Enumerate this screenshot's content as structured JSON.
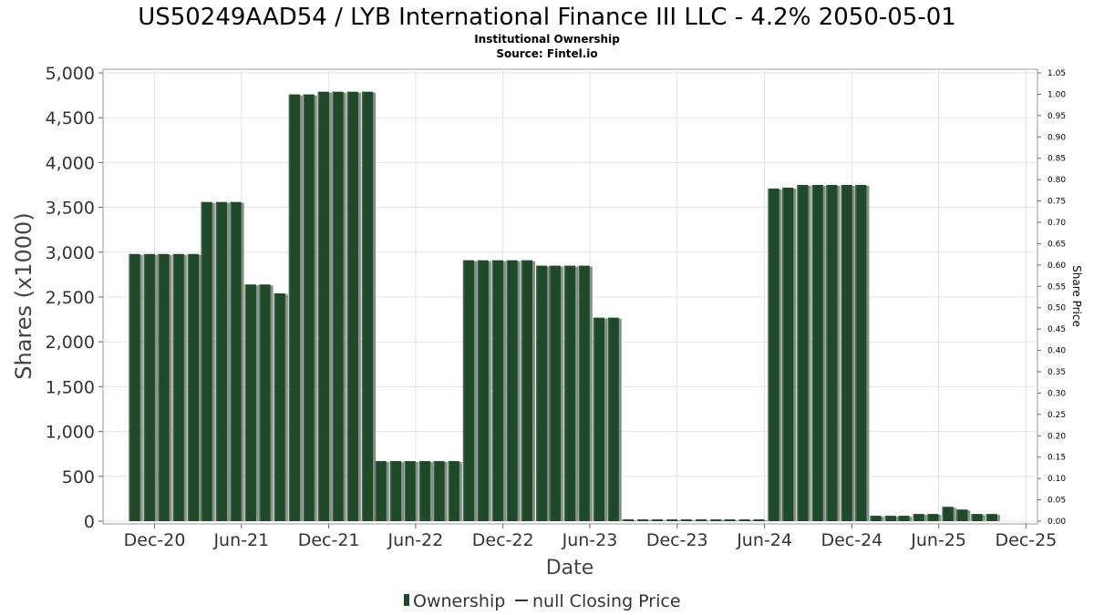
{
  "chart_data": {
    "type": "bar",
    "title": "US50249AAD54 / LYB International Finance III LLC - 4.2% 2050-05-01",
    "subtitle_lines": [
      "Institutional Ownership",
      "Source: Fintel.io"
    ],
    "xlabel": "Date",
    "ylabel": "Shares (x1000)",
    "y2label": "Share Price",
    "ylim": [
      0,
      5000
    ],
    "y2lim": [
      0,
      1.05
    ],
    "xlim": [
      "2020-08-15",
      "2025-12-25"
    ],
    "grid": true,
    "legend_position": "bottom",
    "bar_color": "#1e4a2a",
    "yticks": [
      {
        "value": 0,
        "label": "0"
      },
      {
        "value": 500,
        "label": "500"
      },
      {
        "value": 1000,
        "label": "1,000"
      },
      {
        "value": 1500,
        "label": "1,500"
      },
      {
        "value": 2000,
        "label": "2,000"
      },
      {
        "value": 2500,
        "label": "2,500"
      },
      {
        "value": 3000,
        "label": "3,000"
      },
      {
        "value": 3500,
        "label": "3,500"
      },
      {
        "value": 4000,
        "label": "4,000"
      },
      {
        "value": 4500,
        "label": "4,500"
      },
      {
        "value": 5000,
        "label": "5,000"
      }
    ],
    "y2ticks": [
      {
        "value": 0.0,
        "label": "0.00"
      },
      {
        "value": 0.05,
        "label": "0.05"
      },
      {
        "value": 0.1,
        "label": "0.10"
      },
      {
        "value": 0.15,
        "label": "0.15"
      },
      {
        "value": 0.2,
        "label": "0.20"
      },
      {
        "value": 0.25,
        "label": "0.25"
      },
      {
        "value": 0.3,
        "label": "0.30"
      },
      {
        "value": 0.35,
        "label": "0.35"
      },
      {
        "value": 0.4,
        "label": "0.40"
      },
      {
        "value": 0.45,
        "label": "0.45"
      },
      {
        "value": 0.5,
        "label": "0.50"
      },
      {
        "value": 0.55,
        "label": "0.55"
      },
      {
        "value": 0.6,
        "label": "0.60"
      },
      {
        "value": 0.65,
        "label": "0.65"
      },
      {
        "value": 0.7,
        "label": "0.70"
      },
      {
        "value": 0.75,
        "label": "0.75"
      },
      {
        "value": 0.8,
        "label": "0.80"
      },
      {
        "value": 0.85,
        "label": "0.85"
      },
      {
        "value": 0.9,
        "label": "0.90"
      },
      {
        "value": 0.95,
        "label": "0.95"
      },
      {
        "value": 1.0,
        "label": "1.00"
      },
      {
        "value": 1.05,
        "label": "1.05"
      }
    ],
    "xticks": [
      {
        "date": "2020-12-01",
        "label": "Dec-20"
      },
      {
        "date": "2021-06-01",
        "label": "Jun-21"
      },
      {
        "date": "2021-12-01",
        "label": "Dec-21"
      },
      {
        "date": "2022-06-01",
        "label": "Jun-22"
      },
      {
        "date": "2022-12-01",
        "label": "Dec-22"
      },
      {
        "date": "2023-06-01",
        "label": "Jun-23"
      },
      {
        "date": "2023-12-01",
        "label": "Dec-23"
      },
      {
        "date": "2024-06-01",
        "label": "Jun-24"
      },
      {
        "date": "2024-12-01",
        "label": "Dec-24"
      },
      {
        "date": "2025-06-01",
        "label": "Jun-25"
      },
      {
        "date": "2025-12-01",
        "label": "Dec-25"
      }
    ],
    "series": [
      {
        "name": "Ownership",
        "points": [
          {
            "x": "2020-10-20",
            "y": 2980
          },
          {
            "x": "2020-11-20",
            "y": 2980
          },
          {
            "x": "2020-12-20",
            "y": 2980
          },
          {
            "x": "2021-01-20",
            "y": 2980
          },
          {
            "x": "2021-02-20",
            "y": 2980
          },
          {
            "x": "2021-03-20",
            "y": 3560
          },
          {
            "x": "2021-04-20",
            "y": 3560
          },
          {
            "x": "2021-05-20",
            "y": 3560
          },
          {
            "x": "2021-06-20",
            "y": 2640
          },
          {
            "x": "2021-07-20",
            "y": 2640
          },
          {
            "x": "2021-08-20",
            "y": 2540
          },
          {
            "x": "2021-09-20",
            "y": 4760
          },
          {
            "x": "2021-10-20",
            "y": 4760
          },
          {
            "x": "2021-11-20",
            "y": 4790
          },
          {
            "x": "2021-12-20",
            "y": 4790
          },
          {
            "x": "2022-01-20",
            "y": 4790
          },
          {
            "x": "2022-02-20",
            "y": 4790
          },
          {
            "x": "2022-03-20",
            "y": 670
          },
          {
            "x": "2022-04-20",
            "y": 670
          },
          {
            "x": "2022-05-20",
            "y": 670
          },
          {
            "x": "2022-06-20",
            "y": 670
          },
          {
            "x": "2022-07-20",
            "y": 670
          },
          {
            "x": "2022-08-20",
            "y": 670
          },
          {
            "x": "2022-09-20",
            "y": 2910
          },
          {
            "x": "2022-10-20",
            "y": 2910
          },
          {
            "x": "2022-11-20",
            "y": 2910
          },
          {
            "x": "2022-12-20",
            "y": 2910
          },
          {
            "x": "2023-01-20",
            "y": 2910
          },
          {
            "x": "2023-02-20",
            "y": 2850
          },
          {
            "x": "2023-03-20",
            "y": 2850
          },
          {
            "x": "2023-04-20",
            "y": 2850
          },
          {
            "x": "2023-05-20",
            "y": 2850
          },
          {
            "x": "2023-06-20",
            "y": 2270
          },
          {
            "x": "2023-07-20",
            "y": 2270
          },
          {
            "x": "2023-08-20",
            "y": 20
          },
          {
            "x": "2023-09-20",
            "y": 20
          },
          {
            "x": "2023-10-20",
            "y": 20
          },
          {
            "x": "2023-11-20",
            "y": 20
          },
          {
            "x": "2023-12-20",
            "y": 20
          },
          {
            "x": "2024-01-20",
            "y": 20
          },
          {
            "x": "2024-02-20",
            "y": 20
          },
          {
            "x": "2024-03-20",
            "y": 20
          },
          {
            "x": "2024-04-20",
            "y": 20
          },
          {
            "x": "2024-05-20",
            "y": 20
          },
          {
            "x": "2024-06-20",
            "y": 3710
          },
          {
            "x": "2024-07-20",
            "y": 3720
          },
          {
            "x": "2024-08-20",
            "y": 3750
          },
          {
            "x": "2024-09-20",
            "y": 3750
          },
          {
            "x": "2024-10-20",
            "y": 3750
          },
          {
            "x": "2024-11-20",
            "y": 3750
          },
          {
            "x": "2024-12-20",
            "y": 3750
          },
          {
            "x": "2025-01-20",
            "y": 60
          },
          {
            "x": "2025-02-20",
            "y": 60
          },
          {
            "x": "2025-03-20",
            "y": 60
          },
          {
            "x": "2025-04-20",
            "y": 80
          },
          {
            "x": "2025-05-20",
            "y": 80
          },
          {
            "x": "2025-06-20",
            "y": 160
          },
          {
            "x": "2025-07-20",
            "y": 130
          },
          {
            "x": "2025-08-20",
            "y": 80
          },
          {
            "x": "2025-09-20",
            "y": 80
          }
        ]
      }
    ],
    "legend": [
      {
        "label": "Ownership",
        "marker": "bar"
      },
      {
        "label": "null Closing Price",
        "marker": "line"
      }
    ]
  }
}
